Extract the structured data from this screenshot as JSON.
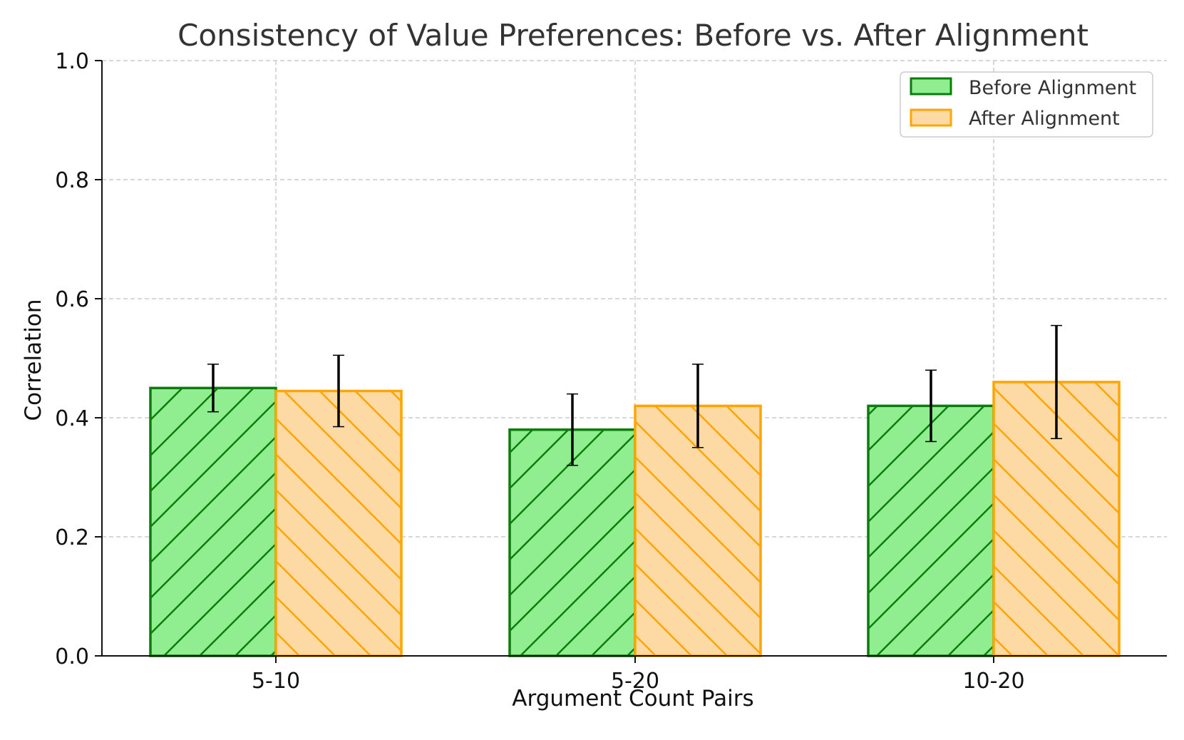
{
  "chart_data": {
    "type": "bar",
    "title": "Consistency of Value Preferences: Before vs. After Alignment",
    "xlabel": "Argument Count Pairs",
    "ylabel": "Correlation",
    "categories": [
      "5-10",
      "5-20",
      "10-20"
    ],
    "ylim": [
      0,
      1.0
    ],
    "yticks": [
      "0.0",
      "0.2",
      "0.4",
      "0.6",
      "0.8",
      "1.0"
    ],
    "grid": true,
    "legend_position": "top-right",
    "series": [
      {
        "name": "Before Alignment",
        "values": [
          0.45,
          0.38,
          0.42
        ],
        "errors": [
          0.04,
          0.06,
          0.06
        ],
        "fill": "#90ee90",
        "edge": "#0a7d0a",
        "hatch": "forward-diagonal"
      },
      {
        "name": "After Alignment",
        "values": [
          0.445,
          0.42,
          0.46
        ],
        "errors": [
          0.06,
          0.07,
          0.095
        ],
        "fill": "#fdd9a4",
        "edge": "#ffa500",
        "hatch": "backward-diagonal"
      }
    ]
  }
}
